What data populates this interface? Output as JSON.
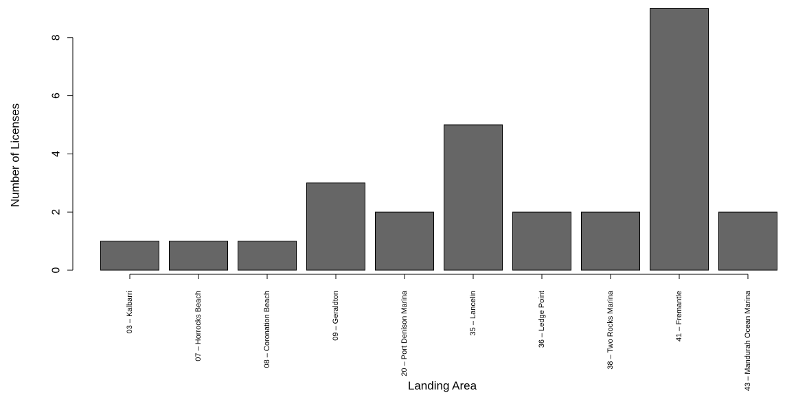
{
  "chart_data": {
    "type": "bar",
    "categories": [
      "03 – Kalbarri",
      "07 – Horrocks Beach",
      "08 – Coronation Beach",
      "09 – Geraldton",
      "20 – Port Denison Marina",
      "35 – Lancelin",
      "36 – Ledge Point",
      "38 – Two Rocks Marina",
      "41 – Fremantle",
      "43 – Mandurah Ocean Marina"
    ],
    "values": [
      1,
      1,
      1,
      3,
      2,
      5,
      2,
      2,
      9,
      2
    ],
    "title": "",
    "xlabel": "Landing Area",
    "ylabel": "Number of Licenses",
    "ylim": [
      0,
      9
    ],
    "yticks": [
      0,
      2,
      4,
      6,
      8
    ],
    "bar_color": "#666666",
    "grid": false,
    "legend": "none"
  }
}
